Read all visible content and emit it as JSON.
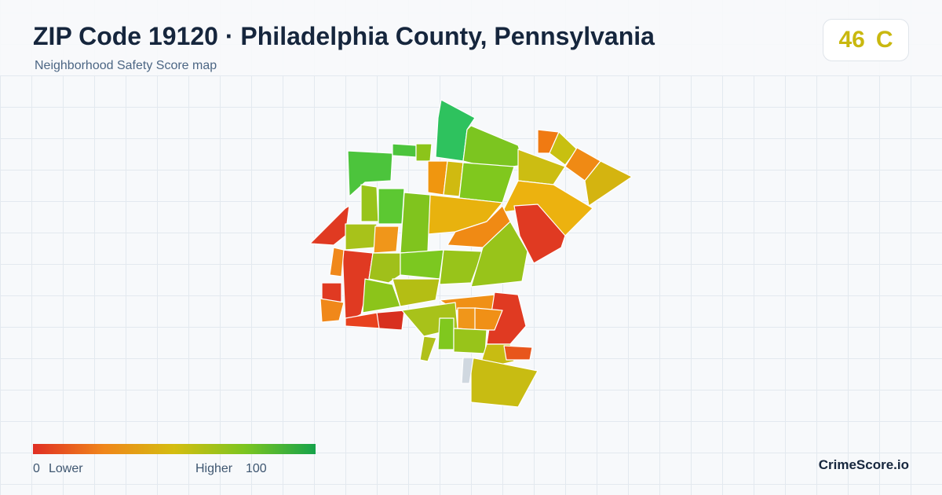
{
  "header": {
    "title": "ZIP Code 19120 · Philadelphia County, Pennsylvania",
    "subtitle": "Neighborhood Safety Score map"
  },
  "score": {
    "value": 46,
    "grade": "C"
  },
  "legend": {
    "min": 0,
    "min_label": "Lower",
    "max_label": "Higher",
    "max": 100
  },
  "footer": {
    "brand": "CrimeScore.io"
  }
}
